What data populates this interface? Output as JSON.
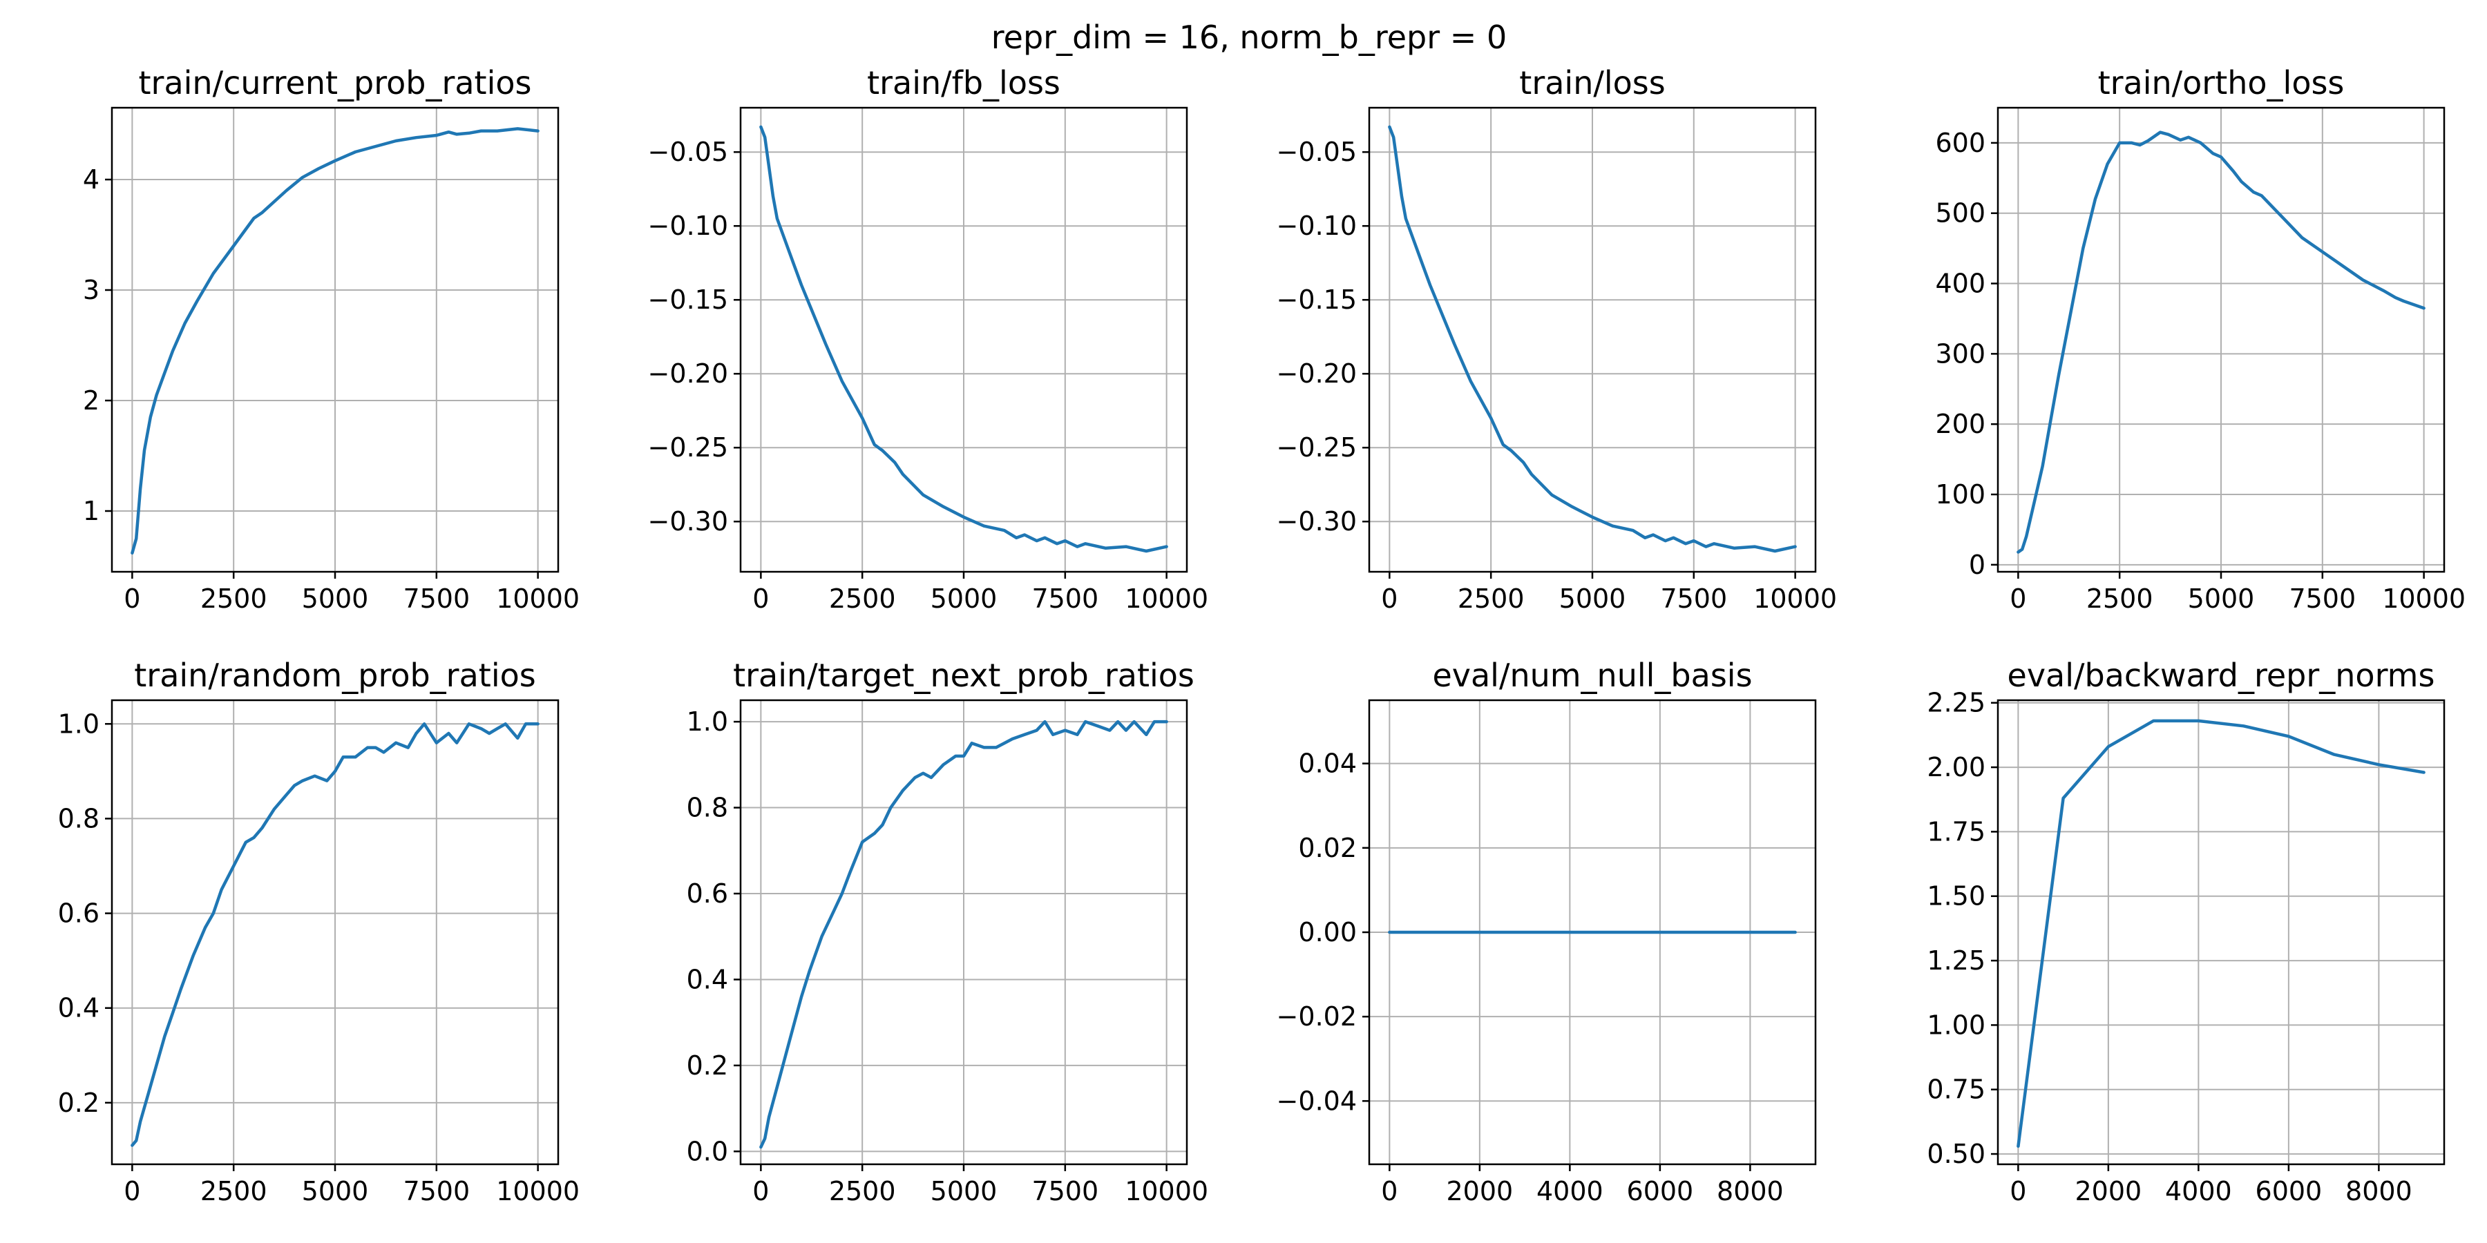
{
  "figure": {
    "suptitle": "repr_dim = 16, norm_b_repr = 0",
    "colors": {
      "line": "#1f77b4",
      "grid": "#b0b0b0"
    }
  },
  "chart_data": [
    {
      "type": "line",
      "title": "train/current_prob_ratios",
      "xlabel": "",
      "ylabel": "",
      "xlim": [
        -500,
        10500
      ],
      "ylim": [
        0.45,
        4.65
      ],
      "xticks": [
        0,
        2500,
        5000,
        7500,
        10000
      ],
      "xtick_labels": [
        "0",
        "2500",
        "5000",
        "7500",
        "10000"
      ],
      "yticks": [
        1,
        2,
        3,
        4
      ],
      "ytick_labels": [
        "1",
        "2",
        "3",
        "4"
      ],
      "grid": true,
      "series": [
        {
          "x": [
            0,
            100,
            200,
            300,
            450,
            600,
            800,
            1000,
            1300,
            1600,
            2000,
            2500,
            3000,
            3200,
            3500,
            3800,
            4200,
            4600,
            5000,
            5500,
            6000,
            6500,
            7000,
            7500,
            7800,
            8000,
            8300,
            8600,
            9000,
            9500,
            10000
          ],
          "y": [
            0.62,
            0.75,
            1.2,
            1.55,
            1.85,
            2.05,
            2.25,
            2.45,
            2.7,
            2.9,
            3.15,
            3.4,
            3.65,
            3.7,
            3.8,
            3.9,
            4.02,
            4.1,
            4.17,
            4.25,
            4.3,
            4.35,
            4.38,
            4.4,
            4.43,
            4.41,
            4.42,
            4.44,
            4.44,
            4.46,
            4.44
          ]
        }
      ]
    },
    {
      "type": "line",
      "title": "train/fb_loss",
      "xlabel": "",
      "ylabel": "",
      "xlim": [
        -500,
        10500
      ],
      "ylim": [
        -0.334,
        -0.02
      ],
      "xticks": [
        0,
        2500,
        5000,
        7500,
        10000
      ],
      "xtick_labels": [
        "0",
        "2500",
        "5000",
        "7500",
        "10000"
      ],
      "yticks": [
        -0.05,
        -0.1,
        -0.15,
        -0.2,
        -0.25,
        -0.3
      ],
      "ytick_labels": [
        "−0.05",
        "−0.10",
        "−0.15",
        "−0.20",
        "−0.25",
        "−0.30"
      ],
      "grid": true,
      "series": [
        {
          "x": [
            0,
            100,
            200,
            300,
            400,
            600,
            800,
            1000,
            1300,
            1600,
            2000,
            2500,
            2800,
            3000,
            3300,
            3500,
            4000,
            4500,
            5000,
            5500,
            6000,
            6300,
            6500,
            6800,
            7000,
            7300,
            7500,
            7800,
            8000,
            8500,
            9000,
            9500,
            10000
          ],
          "y": [
            -0.033,
            -0.04,
            -0.06,
            -0.08,
            -0.095,
            -0.11,
            -0.125,
            -0.14,
            -0.16,
            -0.18,
            -0.205,
            -0.23,
            -0.248,
            -0.252,
            -0.26,
            -0.268,
            -0.282,
            -0.29,
            -0.297,
            -0.303,
            -0.306,
            -0.311,
            -0.309,
            -0.313,
            -0.311,
            -0.315,
            -0.313,
            -0.317,
            -0.315,
            -0.318,
            -0.317,
            -0.32,
            -0.317
          ]
        }
      ]
    },
    {
      "type": "line",
      "title": "train/loss",
      "xlabel": "",
      "ylabel": "",
      "xlim": [
        -500,
        10500
      ],
      "ylim": [
        -0.334,
        -0.02
      ],
      "xticks": [
        0,
        2500,
        5000,
        7500,
        10000
      ],
      "xtick_labels": [
        "0",
        "2500",
        "5000",
        "7500",
        "10000"
      ],
      "yticks": [
        -0.05,
        -0.1,
        -0.15,
        -0.2,
        -0.25,
        -0.3
      ],
      "ytick_labels": [
        "−0.05",
        "−0.10",
        "−0.15",
        "−0.20",
        "−0.25",
        "−0.30"
      ],
      "grid": true,
      "series": [
        {
          "x": [
            0,
            100,
            200,
            300,
            400,
            600,
            800,
            1000,
            1300,
            1600,
            2000,
            2500,
            2800,
            3000,
            3300,
            3500,
            4000,
            4500,
            5000,
            5500,
            6000,
            6300,
            6500,
            6800,
            7000,
            7300,
            7500,
            7800,
            8000,
            8500,
            9000,
            9500,
            10000
          ],
          "y": [
            -0.033,
            -0.04,
            -0.06,
            -0.08,
            -0.095,
            -0.11,
            -0.125,
            -0.14,
            -0.16,
            -0.18,
            -0.205,
            -0.23,
            -0.248,
            -0.252,
            -0.26,
            -0.268,
            -0.282,
            -0.29,
            -0.297,
            -0.303,
            -0.306,
            -0.311,
            -0.309,
            -0.313,
            -0.311,
            -0.315,
            -0.313,
            -0.317,
            -0.315,
            -0.318,
            -0.317,
            -0.32,
            -0.317
          ]
        }
      ]
    },
    {
      "type": "line",
      "title": "train/ortho_loss",
      "xlabel": "",
      "ylabel": "",
      "xlim": [
        -500,
        10500
      ],
      "ylim": [
        -10,
        650
      ],
      "xticks": [
        0,
        2500,
        5000,
        7500,
        10000
      ],
      "xtick_labels": [
        "0",
        "2500",
        "5000",
        "7500",
        "10000"
      ],
      "yticks": [
        0,
        100,
        200,
        300,
        400,
        500,
        600
      ],
      "ytick_labels": [
        "0",
        "100",
        "200",
        "300",
        "400",
        "500",
        "600"
      ],
      "grid": true,
      "series": [
        {
          "x": [
            0,
            100,
            200,
            400,
            600,
            800,
            1000,
            1300,
            1600,
            1900,
            2200,
            2500,
            2800,
            3000,
            3200,
            3500,
            3700,
            4000,
            4200,
            4500,
            4800,
            5000,
            5300,
            5500,
            5800,
            6000,
            6500,
            7000,
            7500,
            8000,
            8500,
            9000,
            9300,
            9500,
            10000
          ],
          "y": [
            18,
            22,
            40,
            90,
            140,
            205,
            270,
            360,
            450,
            520,
            570,
            600,
            600,
            597,
            603,
            615,
            612,
            604,
            608,
            600,
            585,
            580,
            560,
            545,
            530,
            525,
            495,
            465,
            445,
            425,
            405,
            390,
            380,
            375,
            365
          ]
        }
      ]
    },
    {
      "type": "line",
      "title": "train/random_prob_ratios",
      "xlabel": "",
      "ylabel": "",
      "xlim": [
        -500,
        10500
      ],
      "ylim": [
        0.07,
        1.05
      ],
      "xticks": [
        0,
        2500,
        5000,
        7500,
        10000
      ],
      "xtick_labels": [
        "0",
        "2500",
        "5000",
        "7500",
        "10000"
      ],
      "yticks": [
        0.2,
        0.4,
        0.6,
        0.8,
        1.0
      ],
      "ytick_labels": [
        "0.2",
        "0.4",
        "0.6",
        "0.8",
        "1.0"
      ],
      "grid": true,
      "series": [
        {
          "x": [
            0,
            100,
            200,
            400,
            600,
            800,
            1000,
            1200,
            1500,
            1800,
            2000,
            2200,
            2500,
            2800,
            3000,
            3200,
            3500,
            3800,
            4000,
            4200,
            4500,
            4800,
            5000,
            5200,
            5500,
            5800,
            6000,
            6200,
            6500,
            6800,
            7000,
            7200,
            7500,
            7800,
            8000,
            8300,
            8600,
            8800,
            9000,
            9200,
            9500,
            9700,
            10000
          ],
          "y": [
            0.11,
            0.12,
            0.16,
            0.22,
            0.28,
            0.34,
            0.39,
            0.44,
            0.51,
            0.57,
            0.6,
            0.65,
            0.7,
            0.75,
            0.76,
            0.78,
            0.82,
            0.85,
            0.87,
            0.88,
            0.89,
            0.88,
            0.9,
            0.93,
            0.93,
            0.95,
            0.95,
            0.94,
            0.96,
            0.95,
            0.98,
            1.0,
            0.96,
            0.98,
            0.96,
            1.0,
            0.99,
            0.98,
            0.99,
            1.0,
            0.97,
            1.0,
            1.0
          ]
        }
      ]
    },
    {
      "type": "line",
      "title": "train/target_next_prob_ratios",
      "xlabel": "",
      "ylabel": "",
      "xlim": [
        -500,
        10500
      ],
      "ylim": [
        -0.03,
        1.05
      ],
      "xticks": [
        0,
        2500,
        5000,
        7500,
        10000
      ],
      "xtick_labels": [
        "0",
        "2500",
        "5000",
        "7500",
        "10000"
      ],
      "yticks": [
        0.0,
        0.2,
        0.4,
        0.6,
        0.8,
        1.0
      ],
      "ytick_labels": [
        "0.0",
        "0.2",
        "0.4",
        "0.6",
        "0.8",
        "1.0"
      ],
      "grid": true,
      "series": [
        {
          "x": [
            0,
            100,
            200,
            400,
            600,
            800,
            1000,
            1200,
            1500,
            1800,
            2000,
            2200,
            2500,
            2800,
            3000,
            3200,
            3500,
            3800,
            4000,
            4200,
            4500,
            4800,
            5000,
            5200,
            5500,
            5800,
            6000,
            6200,
            6500,
            6800,
            7000,
            7200,
            7500,
            7800,
            8000,
            8300,
            8600,
            8800,
            9000,
            9200,
            9500,
            9700,
            10000
          ],
          "y": [
            0.01,
            0.03,
            0.08,
            0.15,
            0.22,
            0.29,
            0.36,
            0.42,
            0.5,
            0.56,
            0.6,
            0.65,
            0.72,
            0.74,
            0.76,
            0.8,
            0.84,
            0.87,
            0.88,
            0.87,
            0.9,
            0.92,
            0.92,
            0.95,
            0.94,
            0.94,
            0.95,
            0.96,
            0.97,
            0.98,
            1.0,
            0.97,
            0.98,
            0.97,
            1.0,
            0.99,
            0.98,
            1.0,
            0.98,
            1.0,
            0.97,
            1.0,
            1.0
          ]
        }
      ]
    },
    {
      "type": "line",
      "title": "eval/num_null_basis",
      "xlabel": "",
      "ylabel": "",
      "xlim": [
        -450,
        9450
      ],
      "ylim": [
        -0.055,
        0.055
      ],
      "xticks": [
        0,
        2000,
        4000,
        6000,
        8000
      ],
      "xtick_labels": [
        "0",
        "2000",
        "4000",
        "6000",
        "8000"
      ],
      "yticks": [
        0.04,
        0.02,
        0.0,
        -0.02,
        -0.04
      ],
      "ytick_labels": [
        "0.04",
        "0.02",
        "0.00",
        "−0.02",
        "−0.04"
      ],
      "grid": true,
      "series": [
        {
          "x": [
            0,
            1000,
            2000,
            3000,
            4000,
            5000,
            6000,
            7000,
            8000,
            9000
          ],
          "y": [
            0,
            0,
            0,
            0,
            0,
            0,
            0,
            0,
            0,
            0
          ]
        }
      ]
    },
    {
      "type": "line",
      "title": "eval/backward_repr_norms",
      "xlabel": "",
      "ylabel": "",
      "xlim": [
        -450,
        9450
      ],
      "ylim": [
        0.46,
        2.26
      ],
      "xticks": [
        0,
        2000,
        4000,
        6000,
        8000
      ],
      "xtick_labels": [
        "0",
        "2000",
        "4000",
        "6000",
        "8000"
      ],
      "yticks": [
        0.5,
        0.75,
        1.0,
        1.25,
        1.5,
        1.75,
        2.0,
        2.25
      ],
      "ytick_labels": [
        "0.50",
        "0.75",
        "1.00",
        "1.25",
        "1.50",
        "1.75",
        "2.00",
        "2.25"
      ],
      "grid": true,
      "series": [
        {
          "x": [
            0,
            1000,
            2000,
            3000,
            4000,
            5000,
            6000,
            7000,
            8000,
            9000
          ],
          "y": [
            0.53,
            1.88,
            2.08,
            2.18,
            2.18,
            2.16,
            2.12,
            2.05,
            2.01,
            1.98
          ]
        }
      ]
    }
  ]
}
